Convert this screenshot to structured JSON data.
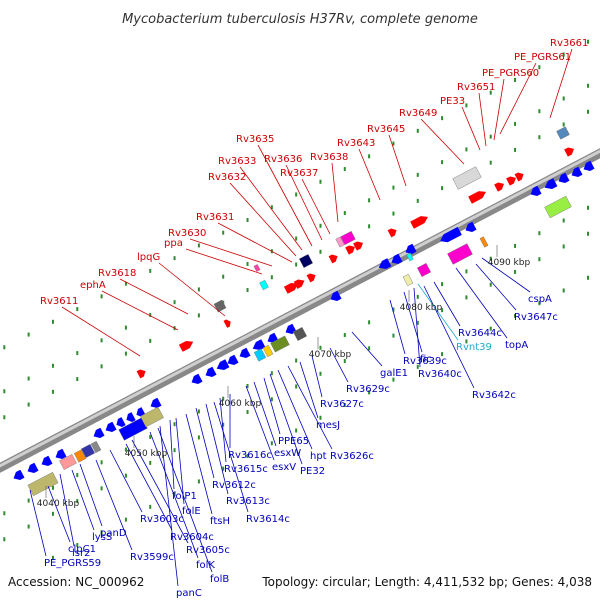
{
  "title": "Mycobacterium tuberculosis H37Rv, complete genome",
  "footer": {
    "accession": "Accession: NC_000962",
    "summary": "Topology: circular; Length: 4,411,532 bp; Genes: 4,038"
  },
  "colors": {
    "forward_label": "#cc0000",
    "reverse_label": "#0000bb",
    "rna_label": "#22aacc",
    "backbone": "#999999",
    "dots": "#2e8b2e"
  },
  "ticks": [
    "4040 kbp",
    "4050 kbp",
    "4060 kbp",
    "4070 kbp",
    "4080 kbp",
    "4090 kbp"
  ],
  "forward_labels": [
    "Rv3611",
    "ephA",
    "Rv3618",
    "lpqG",
    "ppa",
    "Rv3630",
    "Rv3631",
    "Rv3632",
    "Rv3633",
    "Rv3635",
    "Rv3636",
    "Rv3637",
    "Rv3638",
    "Rv3643",
    "Rv3645",
    "Rv3649",
    "PE33",
    "Rv3651",
    "PE_PGRS60",
    "PE_PGRS61",
    "Rv3661"
  ],
  "reverse_labels": [
    "PE_PGRS59",
    "clpC1",
    "lsr2",
    "lysS",
    "panD",
    "Rv3599c",
    "Rv3603c",
    "Rv3604c",
    "Rv3605c",
    "folK",
    "folB",
    "panC",
    "folP1",
    "folE",
    "ftsH",
    "Rv3612c",
    "Rv3613c",
    "Rv3614c",
    "Rv3615c",
    "Rv3616c",
    "esxV",
    "esxW",
    "PPE65",
    "PE32",
    "hpt",
    "Rv3626c",
    "mesJ",
    "Rv3627c",
    "Rv3629c",
    "galE1",
    "Rv3639c",
    "fic",
    "Rv3640c",
    "Rv3642c",
    "Rv3644c",
    "topA",
    "Rv3647c",
    "cspA"
  ],
  "rna_labels": [
    "Rvnt39"
  ]
}
